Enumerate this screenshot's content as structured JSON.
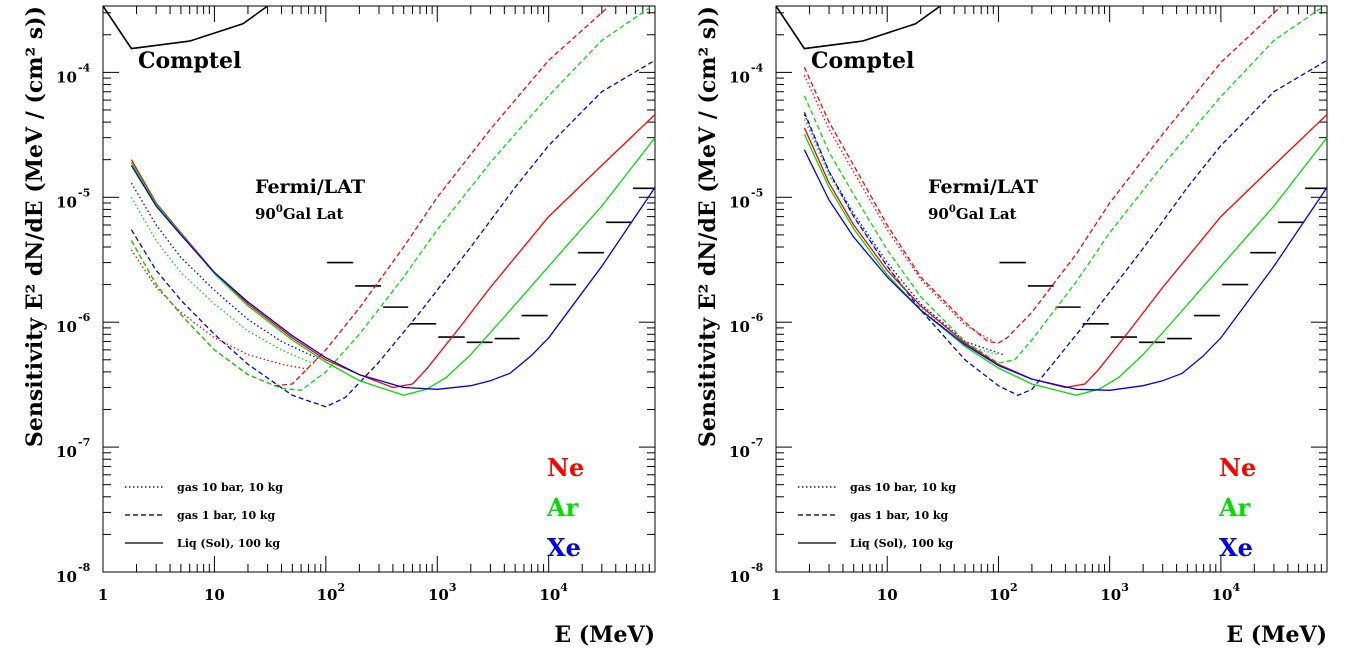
{
  "chart_data": [
    {
      "type": "line",
      "title": "",
      "xlabel": "E (MeV)",
      "ylabel": "Sensitivity  E² dN/dE (MeV / (cm² s))",
      "x_scale": "log",
      "y_scale": "log",
      "xlim": [
        1,
        90000
      ],
      "ylim": [
        1e-08,
        0.00034
      ],
      "x_ticks": [
        {
          "v": 1,
          "base": "1",
          "exp": ""
        },
        {
          "v": 10,
          "base": "10",
          "exp": ""
        },
        {
          "v": 100,
          "base": "10",
          "exp": "2"
        },
        {
          "v": 1000,
          "base": "10",
          "exp": "3"
        },
        {
          "v": 10000,
          "base": "10",
          "exp": "4"
        }
      ],
      "y_ticks": [
        {
          "v": 1e-08,
          "base": "10",
          "exp": "-8"
        },
        {
          "v": 1e-07,
          "base": "10",
          "exp": "-7"
        },
        {
          "v": 1e-06,
          "base": "10",
          "exp": "-6"
        },
        {
          "v": 1e-05,
          "base": "10",
          "exp": "-5"
        },
        {
          "v": 0.0001,
          "base": "10",
          "exp": "-4"
        }
      ],
      "annotations": {
        "comptel": "Comptel",
        "fermi_1": "Fermi/LAT",
        "fermi_2_pre": "90",
        "fermi_2_sup": "0",
        "fermi_2_post": "Gal Lat"
      },
      "legend_styles": [
        {
          "label": "gas 10 bar, 10 kg",
          "dash": "dotted"
        },
        {
          "label": "gas 1 bar, 10 kg",
          "dash": "dashed"
        },
        {
          "label": "Liq (Sol), 100 kg",
          "dash": "solid"
        }
      ],
      "legend_elements": [
        {
          "label": "Ne",
          "color": "#ff0000"
        },
        {
          "label": "Ar",
          "color": "#00dd00"
        },
        {
          "label": "Xe",
          "color": "#0000ee"
        }
      ],
      "comptel_curve": {
        "x": [
          1,
          1.8,
          6,
          18,
          30
        ],
        "y": [
          0.00034,
          0.000155,
          0.000178,
          0.000245,
          0.00034
        ]
      },
      "fermi_steps": [
        {
          "x0": 100,
          "x1": 180,
          "y": 3e-06
        },
        {
          "x0": 180,
          "x1": 320,
          "y": 1.95e-06
        },
        {
          "x0": 320,
          "x1": 560,
          "y": 1.32e-06
        },
        {
          "x0": 560,
          "x1": 1000,
          "y": 9.7e-07
        },
        {
          "x0": 1000,
          "x1": 1800,
          "y": 7.6e-07
        },
        {
          "x0": 1800,
          "x1": 3200,
          "y": 6.9e-07
        },
        {
          "x0": 3200,
          "x1": 5600,
          "y": 7.4e-07
        },
        {
          "x0": 5600,
          "x1": 10000,
          "y": 1.13e-06
        },
        {
          "x0": 10000,
          "x1": 18000,
          "y": 2e-06
        },
        {
          "x0": 18000,
          "x1": 32000,
          "y": 3.6e-06
        },
        {
          "x0": 32000,
          "x1": 56000,
          "y": 6.3e-06
        },
        {
          "x0": 56000,
          "x1": 90000,
          "y": 1.18e-05
        }
      ],
      "series": [
        {
          "element": "Ne",
          "style": "dotted",
          "color": "#ff0000",
          "x": [
            1.8,
            3,
            5,
            10,
            20,
            40,
            70
          ],
          "y": [
            3.8e-06,
            1.9e-06,
            1.2e-06,
            7.5e-07,
            5.5e-07,
            4.6e-07,
            4.2e-07
          ]
        },
        {
          "element": "Ar",
          "style": "dotted",
          "color": "#00dd00",
          "x": [
            1.8,
            3,
            5,
            10,
            20,
            40,
            80
          ],
          "y": [
            1e-05,
            4.5e-06,
            2.5e-06,
            1.4e-06,
            8.5e-07,
            6e-07,
            4.6e-07
          ]
        },
        {
          "element": "Xe",
          "style": "dotted",
          "color": "#0000ee",
          "x": [
            1.8,
            3,
            5,
            10,
            20,
            40,
            90
          ],
          "y": [
            1.3e-05,
            6e-06,
            3.3e-06,
            1.8e-06,
            1.05e-06,
            7e-07,
            5e-07
          ]
        },
        {
          "element": "Ne",
          "style": "dashed",
          "color": "#ff0000",
          "x": [
            1.8,
            3,
            5,
            10,
            20,
            35,
            50,
            100,
            200,
            500,
            1000,
            3000,
            10000,
            35000
          ],
          "y": [
            4.5e-06,
            2e-06,
            1.15e-06,
            6e-07,
            3.8e-07,
            3.1e-07,
            3.2e-07,
            6e-07,
            1.3e-06,
            4e-06,
            1e-05,
            3.5e-05,
            0.000125,
            0.00034
          ]
        },
        {
          "element": "Ar",
          "style": "dashed",
          "color": "#00dd00",
          "x": [
            1.8,
            3,
            5,
            10,
            20,
            40,
            60,
            100,
            200,
            500,
            1000,
            3000,
            10000,
            30000,
            85000
          ],
          "y": [
            4.5e-06,
            2e-06,
            1.15e-06,
            6e-07,
            3.8e-07,
            2.95e-07,
            2.85e-07,
            4e-07,
            8e-07,
            2.3e-06,
            5.5e-06,
            1.9e-05,
            6.5e-05,
            0.00018,
            0.00034
          ]
        },
        {
          "element": "Xe",
          "style": "dashed",
          "color": "#0000ee",
          "x": [
            1.8,
            3,
            5,
            10,
            20,
            50,
            100,
            150,
            300,
            700,
            2000,
            5000,
            10000,
            30000,
            90000
          ],
          "y": [
            5.5e-06,
            2.6e-06,
            1.5e-06,
            8e-07,
            4.6e-07,
            2.6e-07,
            2.1e-07,
            2.5e-07,
            4.8e-07,
            1.2e-06,
            4e-06,
            1.2e-05,
            2.6e-05,
            7e-05,
            0.000125
          ]
        },
        {
          "element": "Ne",
          "style": "solid",
          "color": "#ff0000",
          "x": [
            1.8,
            3,
            5,
            10,
            20,
            50,
            100,
            200,
            400,
            600,
            800,
            1500,
            3000,
            10000,
            30000,
            90000
          ],
          "y": [
            2e-05,
            9e-06,
            5.2e-06,
            2.5e-06,
            1.4e-06,
            7.5e-07,
            5e-07,
            3.8e-07,
            3e-07,
            3.2e-07,
            4.2e-07,
            8.5e-07,
            1.9e-06,
            7e-06,
            1.8e-05,
            4.6e-05
          ]
        },
        {
          "element": "Ar",
          "style": "solid",
          "color": "#00dd00",
          "x": [
            1.8,
            3,
            5,
            10,
            20,
            50,
            100,
            200,
            500,
            800,
            1200,
            2000,
            4000,
            10000,
            30000,
            90000
          ],
          "y": [
            1.9e-05,
            8.8e-06,
            5.1e-06,
            2.45e-06,
            1.35e-06,
            7.2e-07,
            4.8e-07,
            3.4e-07,
            2.6e-07,
            2.9e-07,
            3.6e-07,
            5.5e-07,
            1.1e-06,
            2.8e-06,
            8.5e-06,
            3e-05
          ]
        },
        {
          "element": "Xe",
          "style": "solid",
          "color": "#0000ee",
          "x": [
            1.8,
            3,
            5,
            10,
            20,
            50,
            100,
            200,
            500,
            1000,
            2000,
            3000,
            4500,
            7000,
            10000,
            30000,
            90000
          ],
          "y": [
            1.8e-05,
            8.5e-06,
            5e-06,
            2.5e-06,
            1.45e-06,
            7.8e-07,
            5.2e-07,
            3.8e-07,
            3e-07,
            2.9e-07,
            3.1e-07,
            3.4e-07,
            3.9e-07,
            5.4e-07,
            7.5e-07,
            2.8e-06,
            1.2e-05
          ]
        }
      ]
    },
    {
      "type": "line",
      "title": "",
      "xlabel": "E (MeV)",
      "ylabel": "Sensitivity  E² dN/dE (MeV / (cm² s))",
      "x_scale": "log",
      "y_scale": "log",
      "xlim": [
        1,
        90000
      ],
      "ylim": [
        1e-08,
        0.00034
      ],
      "x_ticks": [
        {
          "v": 1,
          "base": "1",
          "exp": ""
        },
        {
          "v": 10,
          "base": "10",
          "exp": ""
        },
        {
          "v": 100,
          "base": "10",
          "exp": "2"
        },
        {
          "v": 1000,
          "base": "10",
          "exp": "3"
        },
        {
          "v": 10000,
          "base": "10",
          "exp": "4"
        }
      ],
      "y_ticks": [
        {
          "v": 1e-08,
          "base": "10",
          "exp": "-8"
        },
        {
          "v": 1e-07,
          "base": "10",
          "exp": "-7"
        },
        {
          "v": 1e-06,
          "base": "10",
          "exp": "-6"
        },
        {
          "v": 1e-05,
          "base": "10",
          "exp": "-5"
        },
        {
          "v": 0.0001,
          "base": "10",
          "exp": "-4"
        }
      ],
      "annotations": {
        "comptel": "Comptel",
        "fermi_1": "Fermi/LAT",
        "fermi_2_pre": "90",
        "fermi_2_sup": "0",
        "fermi_2_post": "Gal Lat"
      },
      "legend_styles": [
        {
          "label": "gas 10 bar, 10 kg",
          "dash": "dotted"
        },
        {
          "label": "gas 1 bar, 10 kg",
          "dash": "dashed"
        },
        {
          "label": "Liq (Sol), 100 kg",
          "dash": "solid"
        }
      ],
      "legend_elements": [
        {
          "label": "Ne",
          "color": "#ff0000"
        },
        {
          "label": "Ar",
          "color": "#00dd00"
        },
        {
          "label": "Xe",
          "color": "#0000ee"
        }
      ],
      "comptel_curve": {
        "x": [
          1,
          1.8,
          6,
          18,
          30
        ],
        "y": [
          0.00034,
          0.000155,
          0.000178,
          0.000245,
          0.00034
        ]
      },
      "fermi_steps": [
        {
          "x0": 100,
          "x1": 180,
          "y": 3e-06
        },
        {
          "x0": 180,
          "x1": 320,
          "y": 1.95e-06
        },
        {
          "x0": 320,
          "x1": 560,
          "y": 1.32e-06
        },
        {
          "x0": 560,
          "x1": 1000,
          "y": 9.7e-07
        },
        {
          "x0": 1000,
          "x1": 1800,
          "y": 7.6e-07
        },
        {
          "x0": 1800,
          "x1": 3200,
          "y": 6.9e-07
        },
        {
          "x0": 3200,
          "x1": 5600,
          "y": 7.4e-07
        },
        {
          "x0": 5600,
          "x1": 10000,
          "y": 1.13e-06
        },
        {
          "x0": 10000,
          "x1": 18000,
          "y": 2e-06
        },
        {
          "x0": 18000,
          "x1": 32000,
          "y": 3.6e-06
        },
        {
          "x0": 32000,
          "x1": 56000,
          "y": 6.3e-06
        },
        {
          "x0": 56000,
          "x1": 90000,
          "y": 1.18e-05
        }
      ],
      "series": [
        {
          "element": "Ne",
          "style": "dotted",
          "color": "#ff0000",
          "x": [
            1.8,
            3,
            5,
            10,
            20,
            50,
            90
          ],
          "y": [
            9.5e-05,
            3.5e-05,
            1.6e-05,
            5.5e-06,
            2.2e-06,
            9.5e-07,
            7e-07
          ]
        },
        {
          "element": "Ar",
          "style": "dotted",
          "color": "#00dd00",
          "x": [
            1.8,
            3,
            5,
            10,
            20,
            50,
            100
          ],
          "y": [
            4.2e-05,
            1.5e-05,
            7e-06,
            2.8e-06,
            1.3e-06,
            6.5e-07,
            5.5e-07
          ]
        },
        {
          "element": "Xe",
          "style": "dotted",
          "color": "#0000ee",
          "x": [
            1.8,
            3,
            5,
            10,
            20,
            50,
            110
          ],
          "y": [
            4.6e-05,
            1.6e-05,
            7.4e-06,
            3e-06,
            1.4e-06,
            7e-07,
            5.5e-07
          ]
        },
        {
          "element": "Ne",
          "style": "dashed",
          "color": "#ff0000",
          "x": [
            1.8,
            3,
            5,
            10,
            20,
            50,
            80,
            100,
            120,
            200,
            500,
            1000,
            3000,
            10000,
            35000
          ],
          "y": [
            0.00011,
            4e-05,
            1.8e-05,
            6e-06,
            2.3e-06,
            1e-06,
            7e-07,
            6.8e-07,
            7.5e-07,
            1.2e-06,
            3.5e-06,
            9e-06,
            3.2e-05,
            0.00012,
            0.00034
          ]
        },
        {
          "element": "Ar",
          "style": "dashed",
          "color": "#00dd00",
          "x": [
            1.8,
            3,
            5,
            10,
            20,
            50,
            100,
            140,
            200,
            500,
            1000,
            3000,
            10000,
            30000,
            85000
          ],
          "y": [
            6.5e-05,
            2.3e-05,
            1.05e-05,
            3.8e-06,
            1.6e-06,
            7e-07,
            4.7e-07,
            5e-07,
            7.2e-07,
            2.1e-06,
            5.2e-06,
            1.8e-05,
            6.4e-05,
            0.00018,
            0.00034
          ]
        },
        {
          "element": "Xe",
          "style": "dashed",
          "color": "#0000ee",
          "x": [
            1.8,
            3,
            5,
            10,
            20,
            50,
            100,
            150,
            200,
            300,
            700,
            2000,
            5000,
            10000,
            30000,
            90000
          ],
          "y": [
            4.8e-05,
            1.6e-05,
            7e-06,
            2.8e-06,
            1.25e-06,
            5e-07,
            3.1e-07,
            2.6e-07,
            2.9e-07,
            4.5e-07,
            1.15e-06,
            3.9e-06,
            1.2e-05,
            2.6e-05,
            7e-05,
            0.000125
          ]
        },
        {
          "element": "Ne",
          "style": "solid",
          "color": "#ff0000",
          "x": [
            1.8,
            3,
            5,
            10,
            20,
            50,
            100,
            200,
            400,
            600,
            800,
            1500,
            3000,
            10000,
            30000,
            90000
          ],
          "y": [
            3.6e-05,
            1.3e-05,
            6e-06,
            2.6e-06,
            1.35e-06,
            6.8e-07,
            4.6e-07,
            3.5e-07,
            3e-07,
            3.2e-07,
            4.2e-07,
            8.5e-07,
            1.9e-06,
            7e-06,
            1.8e-05,
            4.6e-05
          ]
        },
        {
          "element": "Ar",
          "style": "solid",
          "color": "#00dd00",
          "x": [
            1.8,
            3,
            5,
            10,
            20,
            50,
            100,
            200,
            500,
            800,
            1200,
            2000,
            4000,
            10000,
            30000,
            90000
          ],
          "y": [
            3.2e-05,
            1.2e-05,
            5.6e-06,
            2.4e-06,
            1.25e-06,
            6.4e-07,
            4.3e-07,
            3.2e-07,
            2.6e-07,
            2.9e-07,
            3.6e-07,
            5.5e-07,
            1.1e-06,
            2.8e-06,
            8.5e-06,
            3e-05
          ]
        },
        {
          "element": "Xe",
          "style": "solid",
          "color": "#0000ee",
          "x": [
            1.8,
            3,
            5,
            10,
            20,
            50,
            100,
            200,
            500,
            1000,
            2000,
            3000,
            4500,
            7000,
            10000,
            30000,
            90000
          ],
          "y": [
            2.4e-05,
            9.5e-06,
            4.8e-06,
            2.3e-06,
            1.25e-06,
            6.6e-07,
            4.5e-07,
            3.5e-07,
            2.9e-07,
            2.85e-07,
            3.1e-07,
            3.4e-07,
            3.9e-07,
            5.4e-07,
            7.5e-07,
            2.8e-06,
            1.2e-05
          ]
        }
      ]
    }
  ]
}
